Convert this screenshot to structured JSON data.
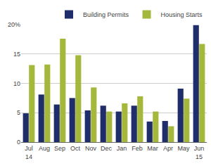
{
  "chart_data": {
    "type": "bar",
    "categories": [
      "Jul\n14",
      "Aug",
      "Sep",
      "Oct",
      "Nov",
      "Dec",
      "Jan",
      "Feb",
      "Mar",
      "Apr",
      "May",
      "Jun\n15"
    ],
    "series": [
      {
        "name": "Building Permits",
        "color": "#1f2d6b",
        "values": [
          4.9,
          8.1,
          6.4,
          7.5,
          5.4,
          6.2,
          5.2,
          6.2,
          3.5,
          3.6,
          9.1,
          19.9
        ]
      },
      {
        "name": "Housing Starts",
        "color": "#a6b83c",
        "values": [
          13.1,
          13.2,
          17.6,
          14.8,
          9.3,
          5.2,
          6.6,
          7.8,
          5.2,
          2.7,
          7.4,
          16.7
        ]
      }
    ],
    "ylim": [
      0,
      20
    ],
    "yticks": [
      0,
      5,
      10,
      15,
      {
        "value": 20,
        "label": "20%"
      }
    ],
    "grid": true,
    "legend": "top"
  }
}
